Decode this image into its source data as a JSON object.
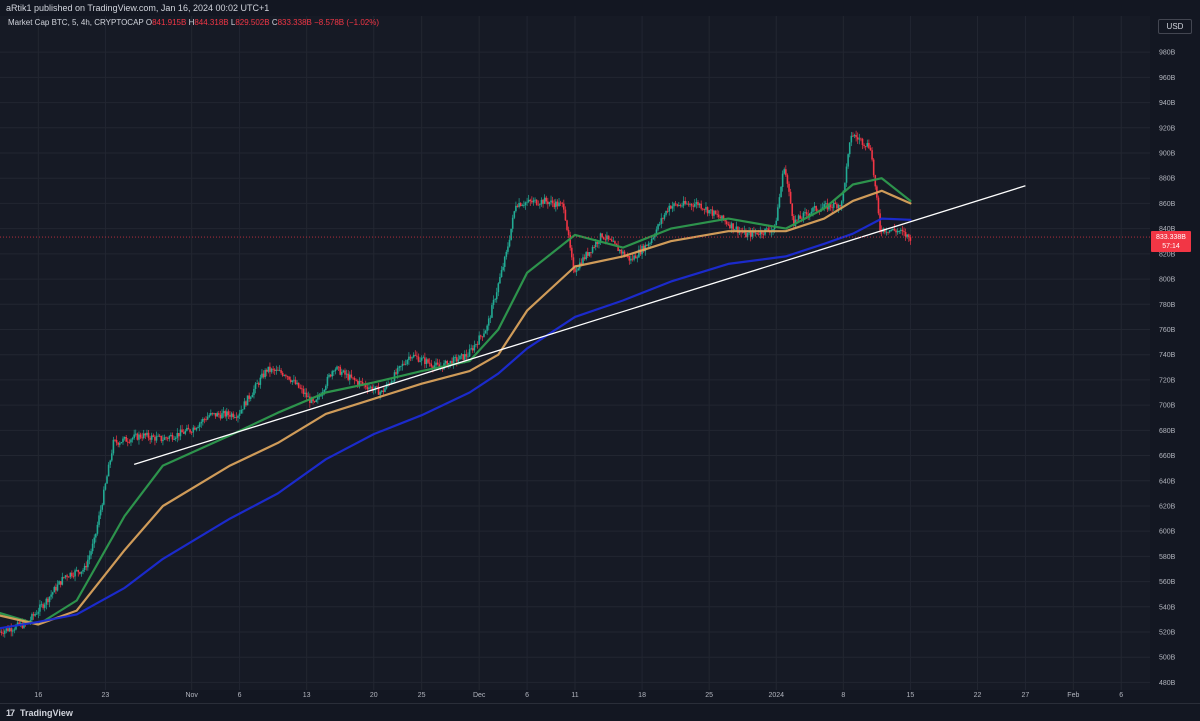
{
  "header": {
    "published": "aRtik1 published on TradingView.com, Jan 16, 2024 00:02 UTC+1"
  },
  "legend": {
    "symbol": "Market Cap BTC, 5, 4h, CRYPTOCAP",
    "o_label": "O",
    "o_value": "841.915B",
    "h_label": "H",
    "h_value": "844.318B",
    "l_label": "L",
    "l_value": "829.502B",
    "c_label": "C",
    "c_value": "833.338B",
    "change": "−8.578B (−1.02%)"
  },
  "price_axis": {
    "unit": "USD",
    "last_price": "833.338B",
    "countdown": "57:14"
  },
  "footer": {
    "brand": "TradingView",
    "logo_icon": "tradingview-logo-icon"
  },
  "colors": {
    "background": "#161a25",
    "grid": "#222631",
    "up": "#22ab94",
    "down": "#f23645",
    "ma_fast": "#2e9a4e",
    "ma_mid": "#d9a25c",
    "ma_slow": "#1b2bd4",
    "trendline": "#ffffff"
  },
  "chart_data": {
    "type": "line",
    "ylim": [
      474,
      996
    ],
    "y_unit": "B USD",
    "y_ticks": [
      480,
      500,
      520,
      540,
      560,
      580,
      600,
      620,
      640,
      660,
      680,
      700,
      720,
      740,
      760,
      780,
      800,
      820,
      840,
      860,
      880,
      900,
      920,
      940,
      960,
      980
    ],
    "y_tick_labels": [
      "480B",
      "500B",
      "520B",
      "540B",
      "560B",
      "580B",
      "600B",
      "620B",
      "640B",
      "660B",
      "680B",
      "700B",
      "720B",
      "740B",
      "760B",
      "780B",
      "800B",
      "820B",
      "840B",
      "860B",
      "880B",
      "900B",
      "920B",
      "940B",
      "960B",
      "980B"
    ],
    "x_ticks": [
      {
        "label": "16",
        "date": "2023-10-16"
      },
      {
        "label": "23",
        "date": "2023-10-23"
      },
      {
        "label": "Nov",
        "date": "2023-11-01"
      },
      {
        "label": "6",
        "date": "2023-11-06"
      },
      {
        "label": "13",
        "date": "2023-11-13"
      },
      {
        "label": "20",
        "date": "2023-11-20"
      },
      {
        "label": "25",
        "date": "2023-11-25"
      },
      {
        "label": "Dec",
        "date": "2023-12-01"
      },
      {
        "label": "6",
        "date": "2023-12-06"
      },
      {
        "label": "11",
        "date": "2023-12-11"
      },
      {
        "label": "18",
        "date": "2023-12-18"
      },
      {
        "label": "25",
        "date": "2023-12-25"
      },
      {
        "label": "2024",
        "date": "2024-01-01"
      },
      {
        "label": "8",
        "date": "2024-01-08"
      },
      {
        "label": "15",
        "date": "2024-01-15"
      },
      {
        "label": "22",
        "date": "2024-01-22"
      },
      {
        "label": "27",
        "date": "2024-01-27"
      },
      {
        "label": "Feb",
        "date": "2024-02-01"
      },
      {
        "label": "6",
        "date": "2024-02-06"
      }
    ],
    "x_range": [
      "2023-10-12",
      "2024-02-09"
    ],
    "grid": true,
    "price_path": [
      {
        "x": "2023-10-12",
        "y": 520
      },
      {
        "x": "2023-10-15",
        "y": 527
      },
      {
        "x": "2023-10-17",
        "y": 545
      },
      {
        "x": "2023-10-19",
        "y": 565
      },
      {
        "x": "2023-10-21",
        "y": 570
      },
      {
        "x": "2023-10-22",
        "y": 592
      },
      {
        "x": "2023-10-23",
        "y": 630
      },
      {
        "x": "2023-10-24",
        "y": 670
      },
      {
        "x": "2023-10-27",
        "y": 676
      },
      {
        "x": "2023-10-29",
        "y": 673
      },
      {
        "x": "2023-11-01",
        "y": 680
      },
      {
        "x": "2023-11-03",
        "y": 692
      },
      {
        "x": "2023-11-06",
        "y": 693
      },
      {
        "x": "2023-11-09",
        "y": 728
      },
      {
        "x": "2023-11-11",
        "y": 725
      },
      {
        "x": "2023-11-14",
        "y": 700
      },
      {
        "x": "2023-11-16",
        "y": 730
      },
      {
        "x": "2023-11-18",
        "y": 720
      },
      {
        "x": "2023-11-21",
        "y": 710
      },
      {
        "x": "2023-11-24",
        "y": 740
      },
      {
        "x": "2023-11-27",
        "y": 730
      },
      {
        "x": "2023-11-30",
        "y": 740
      },
      {
        "x": "2023-12-02",
        "y": 762
      },
      {
        "x": "2023-12-04",
        "y": 820
      },
      {
        "x": "2023-12-05",
        "y": 860
      },
      {
        "x": "2023-12-08",
        "y": 862
      },
      {
        "x": "2023-12-10",
        "y": 858
      },
      {
        "x": "2023-12-11",
        "y": 806
      },
      {
        "x": "2023-12-14",
        "y": 835
      },
      {
        "x": "2023-12-17",
        "y": 815
      },
      {
        "x": "2023-12-19",
        "y": 830
      },
      {
        "x": "2023-12-21",
        "y": 858
      },
      {
        "x": "2023-12-24",
        "y": 860
      },
      {
        "x": "2023-12-27",
        "y": 845
      },
      {
        "x": "2023-12-29",
        "y": 835
      },
      {
        "x": "2024-01-01",
        "y": 840
      },
      {
        "x": "2024-01-02",
        "y": 890
      },
      {
        "x": "2024-01-03",
        "y": 845
      },
      {
        "x": "2024-01-05",
        "y": 855
      },
      {
        "x": "2024-01-08",
        "y": 860
      },
      {
        "x": "2024-01-09",
        "y": 915
      },
      {
        "x": "2024-01-11",
        "y": 905
      },
      {
        "x": "2024-01-12",
        "y": 840
      },
      {
        "x": "2024-01-14",
        "y": 838
      },
      {
        "x": "2024-01-15",
        "y": 833
      }
    ],
    "moving_averages": [
      {
        "color_key": "ma_fast",
        "points": [
          {
            "x": "2023-10-12",
            "y": 535
          },
          {
            "x": "2023-10-16",
            "y": 526
          },
          {
            "x": "2023-10-20",
            "y": 545
          },
          {
            "x": "2023-10-25",
            "y": 612
          },
          {
            "x": "2023-10-29",
            "y": 652
          },
          {
            "x": "2023-11-05",
            "y": 676
          },
          {
            "x": "2023-11-10",
            "y": 694
          },
          {
            "x": "2023-11-15",
            "y": 710
          },
          {
            "x": "2023-11-20",
            "y": 718
          },
          {
            "x": "2023-11-25",
            "y": 727
          },
          {
            "x": "2023-11-30",
            "y": 735
          },
          {
            "x": "2023-12-03",
            "y": 760
          },
          {
            "x": "2023-12-06",
            "y": 805
          },
          {
            "x": "2023-12-11",
            "y": 835
          },
          {
            "x": "2023-12-16",
            "y": 825
          },
          {
            "x": "2023-12-21",
            "y": 840
          },
          {
            "x": "2023-12-27",
            "y": 848
          },
          {
            "x": "2024-01-02",
            "y": 840
          },
          {
            "x": "2024-01-06",
            "y": 856
          },
          {
            "x": "2024-01-09",
            "y": 875
          },
          {
            "x": "2024-01-12",
            "y": 880
          },
          {
            "x": "2024-01-15",
            "y": 862
          }
        ]
      },
      {
        "color_key": "ma_mid",
        "points": [
          {
            "x": "2023-10-12",
            "y": 533
          },
          {
            "x": "2023-10-16",
            "y": 526
          },
          {
            "x": "2023-10-20",
            "y": 537
          },
          {
            "x": "2023-10-25",
            "y": 585
          },
          {
            "x": "2023-10-29",
            "y": 620
          },
          {
            "x": "2023-11-05",
            "y": 652
          },
          {
            "x": "2023-11-10",
            "y": 670
          },
          {
            "x": "2023-11-15",
            "y": 693
          },
          {
            "x": "2023-11-20",
            "y": 705
          },
          {
            "x": "2023-11-25",
            "y": 717
          },
          {
            "x": "2023-11-30",
            "y": 727
          },
          {
            "x": "2023-12-03",
            "y": 740
          },
          {
            "x": "2023-12-06",
            "y": 775
          },
          {
            "x": "2023-12-11",
            "y": 810
          },
          {
            "x": "2023-12-16",
            "y": 818
          },
          {
            "x": "2023-12-21",
            "y": 830
          },
          {
            "x": "2023-12-27",
            "y": 838
          },
          {
            "x": "2024-01-02",
            "y": 838
          },
          {
            "x": "2024-01-06",
            "y": 848
          },
          {
            "x": "2024-01-09",
            "y": 862
          },
          {
            "x": "2024-01-12",
            "y": 870
          },
          {
            "x": "2024-01-15",
            "y": 860
          }
        ]
      },
      {
        "color_key": "ma_slow",
        "points": [
          {
            "x": "2023-10-12",
            "y": 523
          },
          {
            "x": "2023-10-16",
            "y": 528
          },
          {
            "x": "2023-10-20",
            "y": 534
          },
          {
            "x": "2023-10-25",
            "y": 555
          },
          {
            "x": "2023-10-29",
            "y": 578
          },
          {
            "x": "2023-11-05",
            "y": 610
          },
          {
            "x": "2023-11-10",
            "y": 630
          },
          {
            "x": "2023-11-15",
            "y": 657
          },
          {
            "x": "2023-11-20",
            "y": 677
          },
          {
            "x": "2023-11-25",
            "y": 692
          },
          {
            "x": "2023-11-30",
            "y": 710
          },
          {
            "x": "2023-12-03",
            "y": 725
          },
          {
            "x": "2023-12-06",
            "y": 745
          },
          {
            "x": "2023-12-11",
            "y": 770
          },
          {
            "x": "2023-12-16",
            "y": 783
          },
          {
            "x": "2023-12-21",
            "y": 798
          },
          {
            "x": "2023-12-27",
            "y": 812
          },
          {
            "x": "2024-01-02",
            "y": 818
          },
          {
            "x": "2024-01-06",
            "y": 828
          },
          {
            "x": "2024-01-09",
            "y": 836
          },
          {
            "x": "2024-01-12",
            "y": 848
          },
          {
            "x": "2024-01-15",
            "y": 847
          }
        ]
      }
    ],
    "trendline": [
      {
        "x": "2023-10-26",
        "y": 653
      },
      {
        "x": "2024-01-27",
        "y": 874
      }
    ],
    "last_value": 833.338
  }
}
